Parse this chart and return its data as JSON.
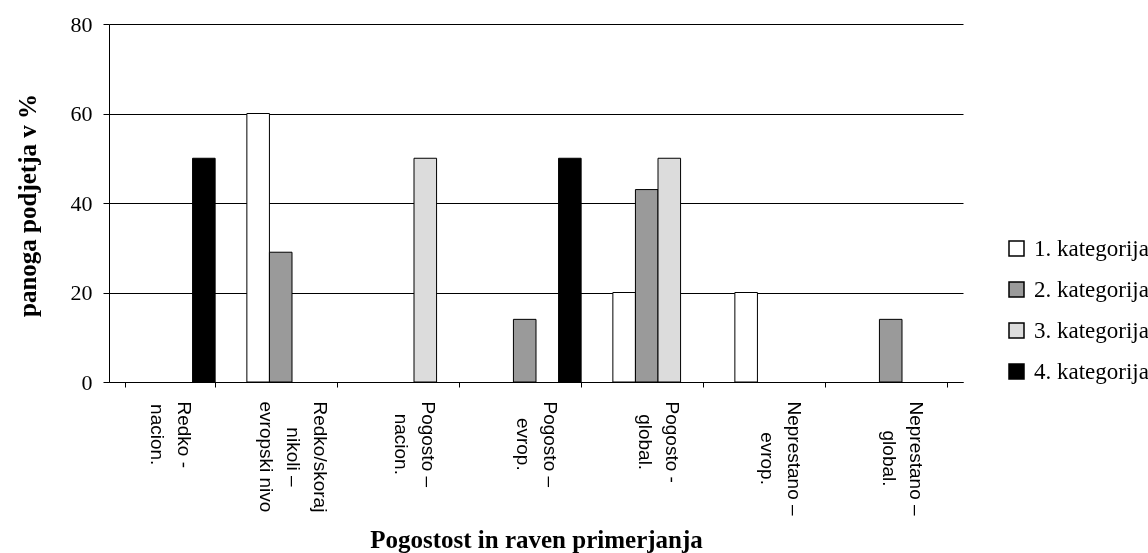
{
  "chart_data": {
    "type": "bar",
    "xlabel": "Pogostost in raven primerjanja",
    "ylabel": "panoga podjetja v %",
    "categories": [
      "Redko -\nnacion.",
      "Redko/skoraj\nnikoli –\nevropski nivo",
      "Pogosto –\nnacion.",
      "Pogosto –\nevrop.",
      "Pogosto -\nglobal.",
      "Neprestano –\nevrop.",
      "Neprestano –\nglobal."
    ],
    "series": [
      {
        "name": "1. kategorija",
        "color": "#ffffff",
        "values": [
          null,
          60,
          null,
          null,
          20,
          20,
          null
        ]
      },
      {
        "name": "2. kategorija",
        "color": "#9a9a9a",
        "values": [
          null,
          29,
          null,
          14,
          43,
          null,
          14
        ]
      },
      {
        "name": "3. kategorija",
        "color": "#dcdcdc",
        "values": [
          null,
          null,
          50,
          null,
          50,
          null,
          null
        ]
      },
      {
        "name": "4. kategorija",
        "color": "#000000",
        "values": [
          50,
          null,
          null,
          50,
          null,
          null,
          null
        ]
      }
    ],
    "ylim": [
      0,
      80
    ],
    "yticks": [
      0,
      20,
      40,
      60,
      80
    ],
    "grid": "y",
    "legend": "right"
  }
}
